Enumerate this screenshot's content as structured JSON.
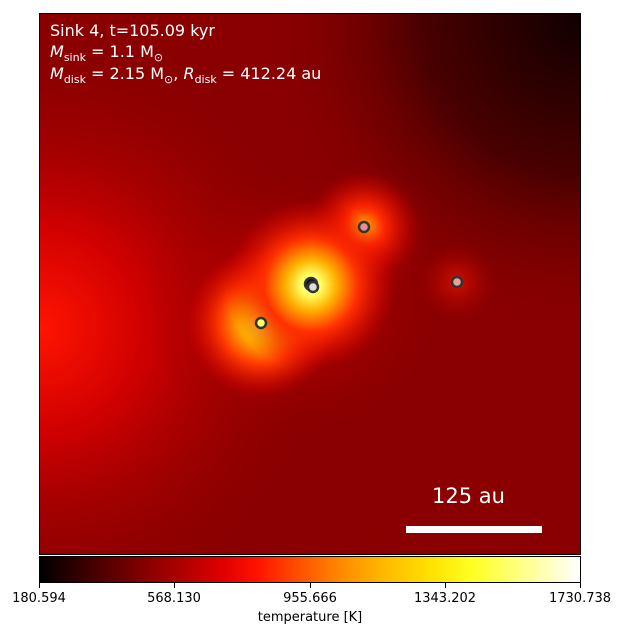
{
  "overlay": {
    "line1": "Sink 4, t=105.09 kyr",
    "line2_symbol": "M",
    "line2_sub": "sink",
    "line2_rest": " = 1.1 M",
    "line2_odot": "⊙",
    "line3_symbol": "M",
    "line3_sub": "disk",
    "line3_mid": " = 2.15 M",
    "line3_odot": "⊙",
    "line3_sep": ", ",
    "line3_symbol2": "R",
    "line3_sub2": "disk",
    "line3_rest": " = 412.24 au"
  },
  "scale_bar": {
    "label": "125 au"
  },
  "colorbar": {
    "label": "temperature [K]",
    "ticks": [
      "180.594",
      "568.130",
      "955.666",
      "1343.202",
      "1730.738"
    ],
    "min": 180.594,
    "max": 1730.738
  },
  "colors": {
    "background_field": "#8a0000",
    "sink_outline": "#333333"
  },
  "sinks": [
    {
      "id": "sink-4-central",
      "fill": "#111111"
    },
    {
      "id": "sink-4-companion",
      "fill": "#dddddd"
    },
    {
      "id": "sink-lower-left",
      "fill": "#ffff66"
    },
    {
      "id": "sink-upper",
      "fill": "#e89090"
    },
    {
      "id": "sink-right",
      "fill": "#e8a0a0"
    }
  ]
}
